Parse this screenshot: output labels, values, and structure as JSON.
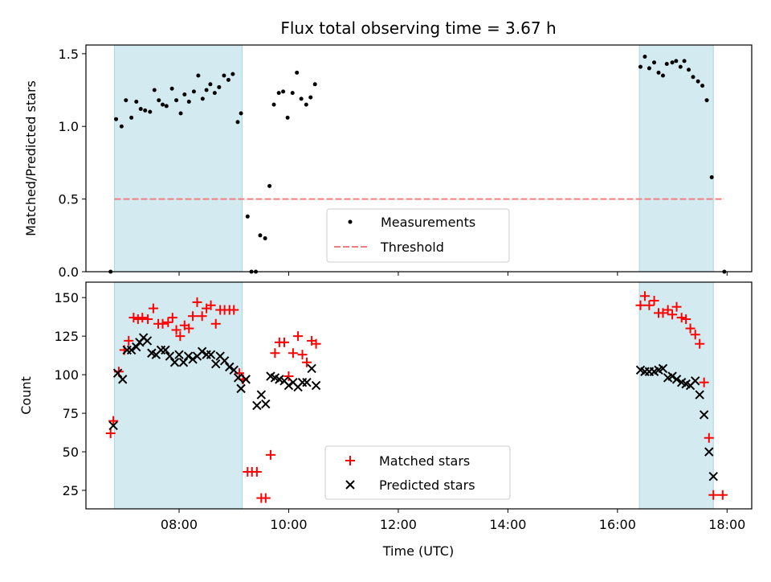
{
  "chart_data": [
    {
      "type": "scatter",
      "title": "Flux total observing time = 3.67 h",
      "ylabel": "Matched/Predicted stars",
      "ylim": [
        0,
        1.56
      ],
      "yticks": [
        0.0,
        0.5,
        1.0,
        1.5
      ],
      "ytick_labels": [
        "0.0",
        "0.5",
        "1.0",
        "1.5"
      ],
      "xlim_hours": [
        6.3,
        18.45
      ],
      "shaded_intervals_hours": [
        [
          6.82,
          9.15
        ],
        [
          16.4,
          17.75
        ]
      ],
      "shade_color": "#d3eaf0",
      "threshold": {
        "name": "Threshold",
        "value": 0.5,
        "x_range_hours": [
          6.82,
          17.95
        ],
        "color": "#f08080"
      },
      "series": [
        {
          "name": "Measurements",
          "color": "#000000",
          "points": [
            [
              6.75,
              0.0
            ],
            [
              6.85,
              1.05
            ],
            [
              6.95,
              1.0
            ],
            [
              7.03,
              1.18
            ],
            [
              7.13,
              1.06
            ],
            [
              7.22,
              1.17
            ],
            [
              7.3,
              1.12
            ],
            [
              7.38,
              1.11
            ],
            [
              7.47,
              1.1
            ],
            [
              7.55,
              1.25
            ],
            [
              7.63,
              1.18
            ],
            [
              7.7,
              1.15
            ],
            [
              7.77,
              1.14
            ],
            [
              7.87,
              1.26
            ],
            [
              7.95,
              1.18
            ],
            [
              8.03,
              1.09
            ],
            [
              8.1,
              1.22
            ],
            [
              8.18,
              1.17
            ],
            [
              8.27,
              1.24
            ],
            [
              8.35,
              1.35
            ],
            [
              8.43,
              1.19
            ],
            [
              8.5,
              1.25
            ],
            [
              8.57,
              1.29
            ],
            [
              8.65,
              1.23
            ],
            [
              8.73,
              1.27
            ],
            [
              8.82,
              1.35
            ],
            [
              8.9,
              1.32
            ],
            [
              8.98,
              1.36
            ],
            [
              9.07,
              1.03
            ],
            [
              9.13,
              1.09
            ],
            [
              9.25,
              0.38
            ],
            [
              9.32,
              0.0
            ],
            [
              9.4,
              0.0
            ],
            [
              9.48,
              0.25
            ],
            [
              9.57,
              0.23
            ],
            [
              9.65,
              0.59
            ],
            [
              9.73,
              1.15
            ],
            [
              9.82,
              1.23
            ],
            [
              9.9,
              1.24
            ],
            [
              9.98,
              1.06
            ],
            [
              10.07,
              1.23
            ],
            [
              10.15,
              1.37
            ],
            [
              10.23,
              1.19
            ],
            [
              10.32,
              1.15
            ],
            [
              10.4,
              1.2
            ],
            [
              10.48,
              1.29
            ],
            [
              16.42,
              1.41
            ],
            [
              16.5,
              1.48
            ],
            [
              16.58,
              1.4
            ],
            [
              16.67,
              1.44
            ],
            [
              16.75,
              1.37
            ],
            [
              16.83,
              1.35
            ],
            [
              16.9,
              1.43
            ],
            [
              17.0,
              1.44
            ],
            [
              17.07,
              1.45
            ],
            [
              17.15,
              1.41
            ],
            [
              17.22,
              1.45
            ],
            [
              17.3,
              1.39
            ],
            [
              17.38,
              1.34
            ],
            [
              17.47,
              1.31
            ],
            [
              17.55,
              1.28
            ],
            [
              17.63,
              1.18
            ],
            [
              17.72,
              0.65
            ],
            [
              17.95,
              0.0
            ]
          ]
        }
      ],
      "legend": {
        "position": "lower-center",
        "entries": [
          "Measurements",
          "Threshold"
        ]
      }
    },
    {
      "type": "scatter",
      "xlabel": "Time (UTC)",
      "ylabel": "Count",
      "ylim": [
        13,
        160
      ],
      "yticks": [
        25,
        50,
        75,
        100,
        125,
        150
      ],
      "xlim_hours": [
        6.3,
        18.45
      ],
      "xticks_hours": [
        8,
        10,
        12,
        14,
        16,
        18
      ],
      "xtick_labels": [
        "08:00",
        "10:00",
        "12:00",
        "14:00",
        "16:00",
        "18:00"
      ],
      "shaded_intervals_hours": [
        [
          6.82,
          9.15
        ],
        [
          16.4,
          17.75
        ]
      ],
      "shade_color": "#d3eaf0",
      "series": [
        {
          "name": "Matched stars",
          "marker": "plus",
          "color": "#ff0000",
          "points": [
            [
              6.75,
              62
            ],
            [
              6.8,
              70
            ],
            [
              6.9,
              102
            ],
            [
              7.0,
              116
            ],
            [
              7.08,
              122
            ],
            [
              7.17,
              137
            ],
            [
              7.25,
              136
            ],
            [
              7.33,
              137
            ],
            [
              7.43,
              136
            ],
            [
              7.53,
              143
            ],
            [
              7.62,
              133
            ],
            [
              7.7,
              133
            ],
            [
              7.8,
              134
            ],
            [
              7.88,
              137
            ],
            [
              7.95,
              129
            ],
            [
              8.02,
              125
            ],
            [
              8.1,
              132
            ],
            [
              8.18,
              130
            ],
            [
              8.25,
              138
            ],
            [
              8.33,
              147
            ],
            [
              8.42,
              138
            ],
            [
              8.5,
              143
            ],
            [
              8.58,
              145
            ],
            [
              8.67,
              133
            ],
            [
              8.75,
              142
            ],
            [
              8.83,
              142
            ],
            [
              8.92,
              142
            ],
            [
              9.0,
              142
            ],
            [
              9.1,
              101
            ],
            [
              9.17,
              97
            ],
            [
              9.25,
              37
            ],
            [
              9.33,
              37
            ],
            [
              9.42,
              37
            ],
            [
              9.5,
              20
            ],
            [
              9.58,
              20
            ],
            [
              9.67,
              48
            ],
            [
              9.75,
              114
            ],
            [
              9.83,
              121
            ],
            [
              9.92,
              121
            ],
            [
              10.0,
              99
            ],
            [
              10.08,
              114
            ],
            [
              10.17,
              125
            ],
            [
              10.25,
              113
            ],
            [
              10.33,
              108
            ],
            [
              10.42,
              122
            ],
            [
              10.5,
              120
            ],
            [
              16.42,
              145
            ],
            [
              16.5,
              151
            ],
            [
              16.58,
              145
            ],
            [
              16.67,
              148
            ],
            [
              16.75,
              140
            ],
            [
              16.83,
              140
            ],
            [
              16.92,
              142
            ],
            [
              17.0,
              139
            ],
            [
              17.08,
              144
            ],
            [
              17.17,
              137
            ],
            [
              17.25,
              136
            ],
            [
              17.33,
              130
            ],
            [
              17.42,
              126
            ],
            [
              17.5,
              120
            ],
            [
              17.58,
              95
            ],
            [
              17.67,
              59
            ],
            [
              17.75,
              22
            ],
            [
              17.92,
              22
            ]
          ]
        },
        {
          "name": "Predicted stars",
          "marker": "x",
          "color": "#000000",
          "points": [
            [
              6.8,
              67
            ],
            [
              6.88,
              101
            ],
            [
              6.97,
              97
            ],
            [
              7.05,
              116
            ],
            [
              7.13,
              116
            ],
            [
              7.22,
              118
            ],
            [
              7.28,
              121
            ],
            [
              7.35,
              124
            ],
            [
              7.42,
              122
            ],
            [
              7.5,
              114
            ],
            [
              7.58,
              113
            ],
            [
              7.67,
              116
            ],
            [
              7.75,
              116
            ],
            [
              7.83,
              112
            ],
            [
              7.92,
              108
            ],
            [
              8.0,
              113
            ],
            [
              8.08,
              108
            ],
            [
              8.17,
              112
            ],
            [
              8.25,
              110
            ],
            [
              8.33,
              112
            ],
            [
              8.42,
              115
            ],
            [
              8.5,
              113
            ],
            [
              8.58,
              113
            ],
            [
              8.67,
              107
            ],
            [
              8.75,
              112
            ],
            [
              8.83,
              109
            ],
            [
              8.92,
              105
            ],
            [
              9.0,
              103
            ],
            [
              9.08,
              98
            ],
            [
              9.13,
              91
            ],
            [
              9.22,
              97
            ],
            [
              9.42,
              80
            ],
            [
              9.5,
              87
            ],
            [
              9.58,
              81
            ],
            [
              9.67,
              99
            ],
            [
              9.75,
              98
            ],
            [
              9.83,
              97
            ],
            [
              9.92,
              96
            ],
            [
              10.0,
              93
            ],
            [
              10.08,
              95
            ],
            [
              10.17,
              92
            ],
            [
              10.25,
              95
            ],
            [
              10.33,
              95
            ],
            [
              10.42,
              104
            ],
            [
              10.5,
              93
            ],
            [
              16.42,
              103
            ],
            [
              16.5,
              102
            ],
            [
              16.58,
              102
            ],
            [
              16.67,
              102
            ],
            [
              16.75,
              103
            ],
            [
              16.83,
              104
            ],
            [
              16.92,
              98
            ],
            [
              17.0,
              99
            ],
            [
              17.08,
              97
            ],
            [
              17.17,
              95
            ],
            [
              17.25,
              94
            ],
            [
              17.33,
              93
            ],
            [
              17.42,
              96
            ],
            [
              17.5,
              87
            ],
            [
              17.58,
              74
            ],
            [
              17.67,
              50
            ],
            [
              17.75,
              34
            ]
          ]
        }
      ],
      "legend": {
        "position": "lower-center",
        "entries": [
          "Matched stars",
          "Predicted stars"
        ]
      }
    }
  ]
}
